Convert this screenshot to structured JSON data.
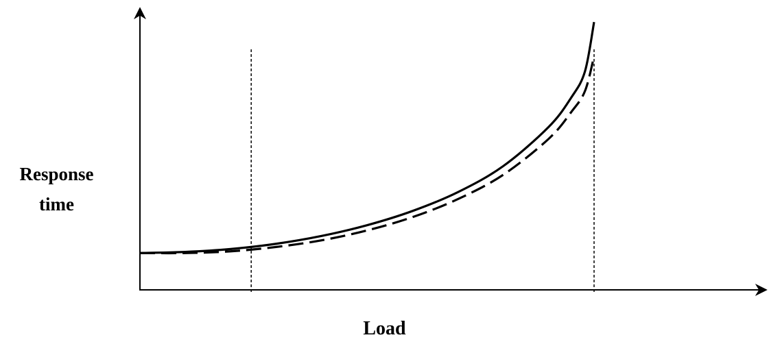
{
  "chart_data": {
    "type": "line",
    "xlabel": "Load",
    "ylabel_line1": "Response",
    "ylabel_line2": "time",
    "ticks_shown": false,
    "grid": false,
    "reference_lines": [
      {
        "style": "dotted",
        "x": 0.245
      },
      {
        "style": "dotted",
        "x": 1.0
      }
    ],
    "series": [
      {
        "style": "solid",
        "color": "#000000",
        "x": [
          0,
          0.1,
          0.2,
          0.3,
          0.4,
          0.5,
          0.6,
          0.7,
          0.8,
          0.9,
          0.95,
          0.98,
          1.0
        ],
        "y": [
          0.127,
          0.131,
          0.141,
          0.159,
          0.186,
          0.223,
          0.272,
          0.337,
          0.427,
          0.562,
          0.664,
          0.754,
          0.924
        ]
      },
      {
        "style": "dashed",
        "color": "#000000",
        "x": [
          0,
          0.1,
          0.2,
          0.3,
          0.4,
          0.5,
          0.6,
          0.7,
          0.8,
          0.9,
          0.95,
          0.98,
          1.0
        ],
        "y": [
          0.127,
          0.127,
          0.133,
          0.148,
          0.171,
          0.205,
          0.251,
          0.313,
          0.397,
          0.521,
          0.614,
          0.686,
          0.806
        ]
      }
    ]
  }
}
